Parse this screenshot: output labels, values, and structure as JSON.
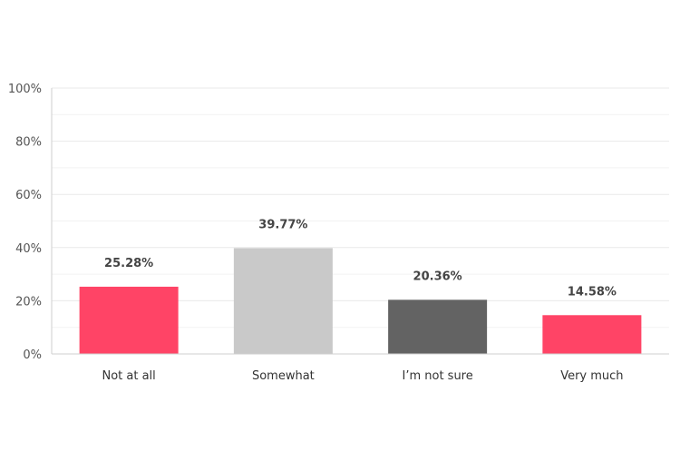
{
  "chart_data": {
    "type": "bar",
    "categories": [
      "Not at all",
      "Somewhat",
      "I’m not sure",
      "Very much"
    ],
    "values": [
      25.28,
      39.77,
      20.36,
      14.58
    ],
    "value_labels": [
      "25.28%",
      "39.77%",
      "20.36%",
      "14.58%"
    ],
    "bar_colors": [
      "#ff4466",
      "#c9c9c9",
      "#636363",
      "#ff4466"
    ],
    "y_ticks": [
      0,
      20,
      40,
      60,
      80,
      100
    ],
    "y_tick_labels": [
      "0%",
      "20%",
      "40%",
      "60%",
      "80%",
      "100%"
    ],
    "ylim": [
      0,
      100
    ],
    "grid": true,
    "legend": "none"
  }
}
